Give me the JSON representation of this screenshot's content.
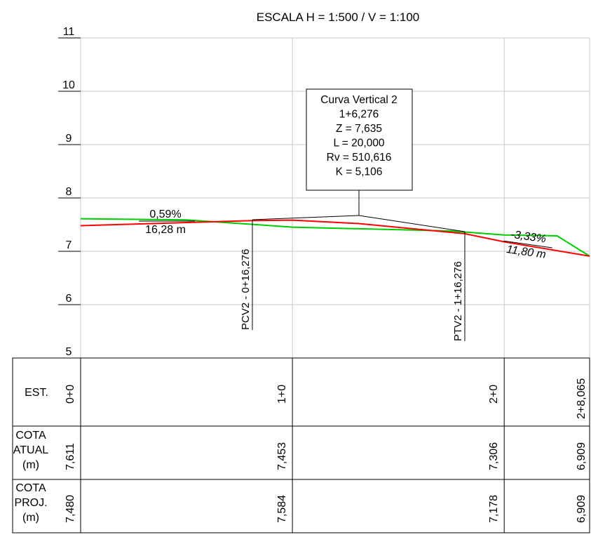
{
  "title": "ESCALA H = 1:500 / V = 1:100",
  "colors": {
    "existing": "#00cc00",
    "proposed": "#ff0000",
    "grid": "#c8c8c8",
    "line": "#000000"
  },
  "y_axis": {
    "ticks": [
      "11",
      "10",
      "9",
      "8",
      "7",
      "6",
      "5"
    ]
  },
  "curve_box": {
    "lines": [
      "Curva Vertical 2",
      "1+6,276",
      "Z = 7,635",
      "L = 20,000",
      "Rv = 510,616",
      "K = 5,106"
    ]
  },
  "grade_left": {
    "slope": "0,59%",
    "length": "16,28 m"
  },
  "grade_right": {
    "slope": "-3,33%",
    "length": "11,80 m"
  },
  "markers": {
    "pcv": "PCV2 - 0+16,276",
    "ptv": "PTV2 - 1+16,276"
  },
  "table": {
    "row_labels": {
      "est": "EST.",
      "cota_atual": [
        "COTA",
        "ATUAL",
        "(m)"
      ],
      "cota_proj": [
        "COTA",
        "PROJ.",
        "(m)"
      ]
    },
    "stations": [
      "0+0",
      "1+0",
      "2+0",
      "2+8,065"
    ],
    "cota_atual": [
      "7,611",
      "7,453",
      "7,306",
      "6,909"
    ],
    "cota_proj": [
      "7,480",
      "7,584",
      "7,178",
      "6,909"
    ]
  },
  "chart_data": {
    "type": "line",
    "title": "ESCALA H = 1:500 / V = 1:100",
    "ylim": [
      5,
      11
    ],
    "x_stations": [
      "0+0",
      "1+0",
      "2+0",
      "2+8,065"
    ],
    "series": [
      {
        "name": "COTA ATUAL",
        "points": [
          [
            0,
            7.611
          ],
          [
            10,
            7.59
          ],
          [
            20,
            7.453
          ],
          [
            35,
            7.38
          ],
          [
            40,
            7.306
          ],
          [
            45,
            7.29
          ],
          [
            48.065,
            6.909
          ]
        ]
      },
      {
        "name": "COTA PROJ.",
        "points": [
          [
            0,
            7.48
          ],
          [
            16.276,
            7.576
          ],
          [
            20,
            7.584
          ],
          [
            26.276,
            7.52
          ],
          [
            36.276,
            7.33
          ],
          [
            40,
            7.178
          ],
          [
            48.065,
            6.909
          ]
        ]
      }
    ]
  }
}
